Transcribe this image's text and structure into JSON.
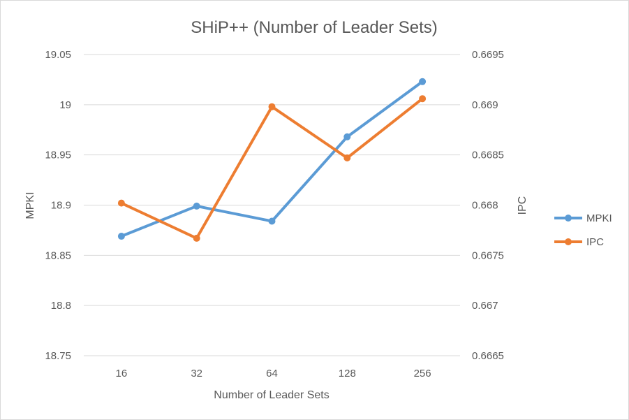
{
  "chart_data": {
    "type": "line",
    "title": "SHiP++ (Number of Leader Sets)",
    "xlabel": "Number of Leader Sets",
    "ylabel": "MPKI",
    "y2label": "IPC",
    "categories": [
      "16",
      "32",
      "64",
      "128",
      "256"
    ],
    "ylim": [
      18.75,
      19.05
    ],
    "y2lim": [
      0.6665,
      0.6695
    ],
    "yticks": [
      "18.75",
      "18.8",
      "18.85",
      "18.9",
      "18.95",
      "19",
      "19.05"
    ],
    "y2ticks": [
      "0.6665",
      "0.667",
      "0.6675",
      "0.668",
      "0.6685",
      "0.669",
      "0.6695"
    ],
    "grid": true,
    "legend_position": "right",
    "series": [
      {
        "name": "MPKI",
        "axis": "left",
        "color": "#5b9bd5",
        "values": [
          18.869,
          18.899,
          18.884,
          18.968,
          19.023
        ]
      },
      {
        "name": "IPC",
        "axis": "right",
        "color": "#ed7d31",
        "values": [
          0.66802,
          0.66767,
          0.66898,
          0.66847,
          0.66906
        ]
      }
    ]
  }
}
